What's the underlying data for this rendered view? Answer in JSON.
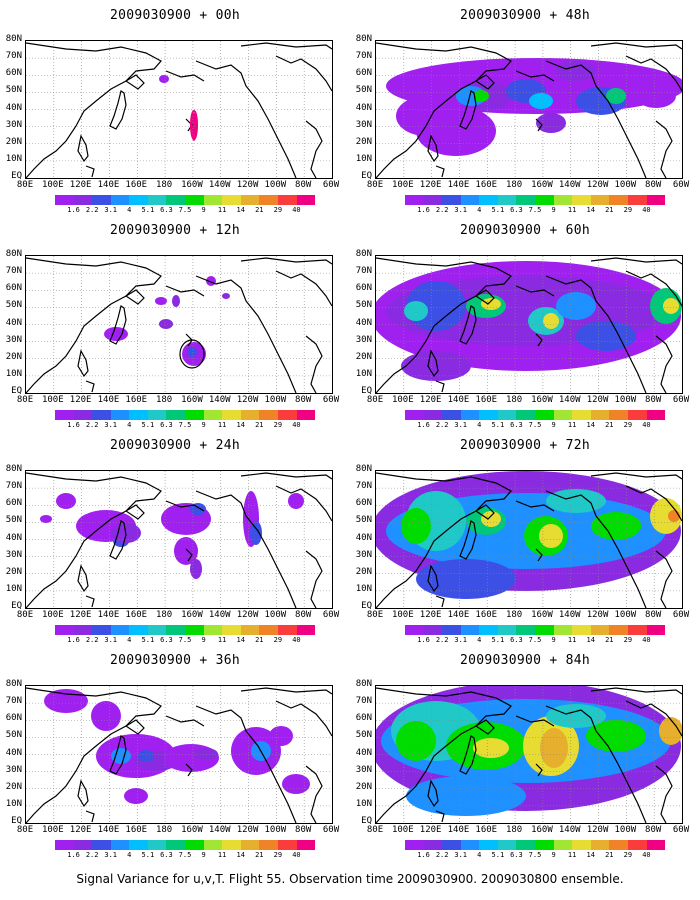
{
  "footer": "Signal Variance for u,v,T. Flight 55. Observation time 2009030900. 2009030800 ensemble.",
  "lat_labels": [
    "80N",
    "70N",
    "60N",
    "50N",
    "40N",
    "30N",
    "20N",
    "10N",
    "EQ"
  ],
  "lon_labels": [
    "80E",
    "100E",
    "120E",
    "140E",
    "160E",
    "180",
    "160W",
    "140W",
    "120W",
    "100W",
    "80W",
    "60W"
  ],
  "colorbar": {
    "labels": [
      "1.6",
      "2.2",
      "3.1",
      "4",
      "5.1",
      "6.3",
      "7.5",
      "9",
      "11",
      "14",
      "21",
      "29",
      "40"
    ],
    "colors": [
      "#a020f0",
      "#8a2be2",
      "#3c50e6",
      "#1e90ff",
      "#00bfff",
      "#20c8c8",
      "#00c878",
      "#00dc00",
      "#a0e632",
      "#e6dc32",
      "#e6af2d",
      "#f08228",
      "#fa3c3c",
      "#f00082"
    ]
  },
  "panels": [
    {
      "title": "2009030900 + 00h",
      "forecast_hour": 0
    },
    {
      "title": "2009030900 + 12h",
      "forecast_hour": 12
    },
    {
      "title": "2009030900 + 24h",
      "forecast_hour": 24
    },
    {
      "title": "2009030900 + 36h",
      "forecast_hour": 36
    },
    {
      "title": "2009030900 + 48h",
      "forecast_hour": 48
    },
    {
      "title": "2009030900 + 60h",
      "forecast_hour": 60
    },
    {
      "title": "2009030900 + 72h",
      "forecast_hour": 72
    },
    {
      "title": "2009030900 + 84h",
      "forecast_hour": 84
    }
  ]
}
